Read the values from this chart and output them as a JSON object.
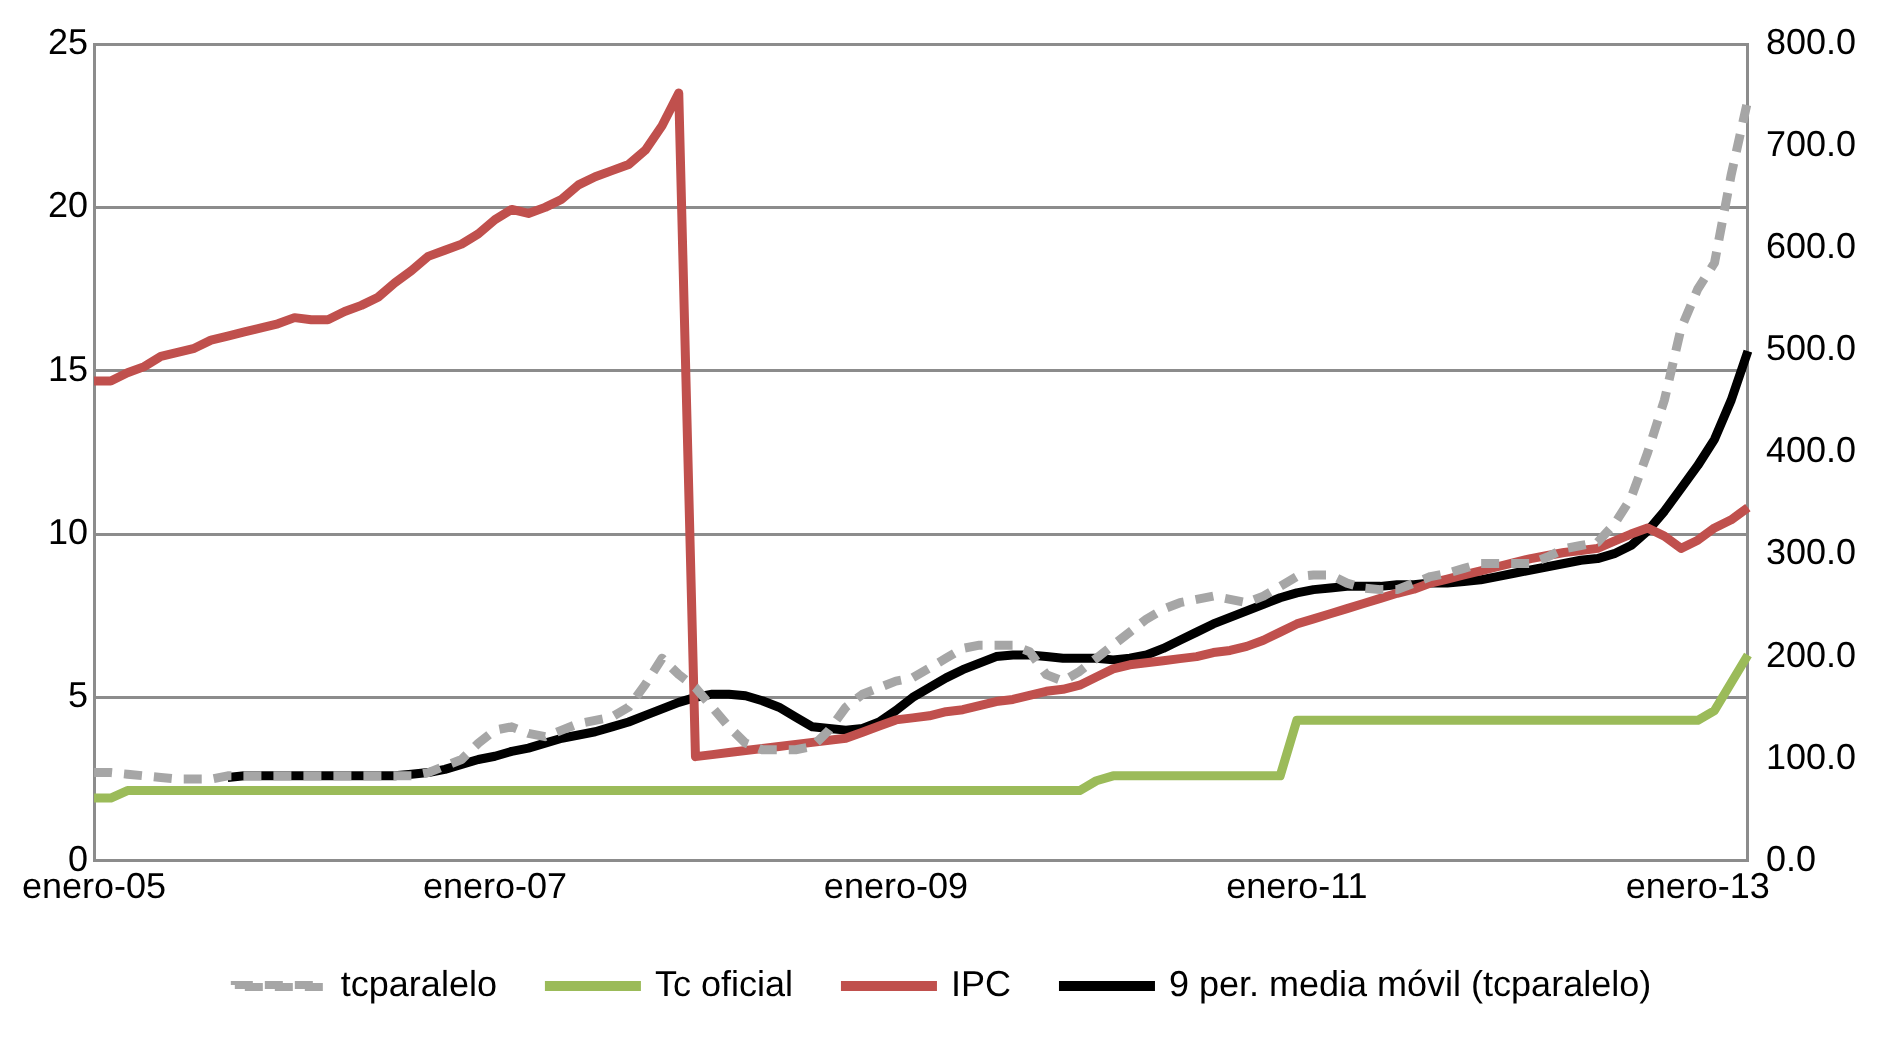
{
  "chart_data": {
    "type": "line",
    "categories": [
      "enero-05",
      null,
      null,
      null,
      null,
      null,
      null,
      null,
      null,
      null,
      null,
      null,
      null,
      null,
      null,
      null,
      null,
      null,
      null,
      null,
      null,
      null,
      null,
      null,
      "enero-07",
      null,
      null,
      null,
      null,
      null,
      null,
      null,
      null,
      null,
      null,
      null,
      null,
      null,
      null,
      null,
      null,
      null,
      null,
      null,
      null,
      null,
      null,
      null,
      "enero-09",
      null,
      null,
      null,
      null,
      null,
      null,
      null,
      null,
      null,
      null,
      null,
      null,
      null,
      null,
      null,
      null,
      null,
      null,
      null,
      null,
      null,
      null,
      null,
      "enero-11",
      null,
      null,
      null,
      null,
      null,
      null,
      null,
      null,
      null,
      null,
      null,
      null,
      null,
      null,
      null,
      null,
      null,
      null,
      null,
      null,
      null,
      null,
      null,
      "enero-13",
      null,
      null,
      null
    ],
    "series": [
      {
        "name": "tcparalelo",
        "color": "#a6a6a6",
        "line_style": "dashed",
        "values": [
          2.7,
          2.7,
          2.65,
          2.6,
          2.55,
          2.5,
          2.5,
          2.5,
          2.6,
          2.6,
          2.6,
          2.6,
          2.6,
          2.6,
          2.6,
          2.6,
          2.6,
          2.6,
          2.6,
          2.6,
          2.7,
          2.9,
          3.1,
          3.6,
          4.0,
          4.1,
          3.9,
          3.8,
          4.0,
          4.2,
          4.3,
          4.4,
          4.7,
          5.4,
          6.2,
          5.7,
          5.3,
          4.7,
          4.1,
          3.6,
          3.4,
          3.4,
          3.4,
          3.5,
          4.0,
          4.7,
          5.1,
          5.3,
          5.5,
          5.6,
          5.9,
          6.2,
          6.5,
          6.6,
          6.6,
          6.6,
          6.4,
          5.7,
          5.5,
          5.8,
          6.2,
          6.6,
          7.0,
          7.4,
          7.7,
          7.9,
          8.0,
          8.1,
          8.0,
          7.9,
          8.1,
          8.4,
          8.7,
          8.75,
          8.75,
          8.5,
          8.35,
          8.3,
          8.3,
          8.5,
          8.7,
          8.8,
          8.95,
          9.1,
          9.1,
          9.1,
          9.1,
          9.3,
          9.55,
          9.65,
          9.75,
          10.3,
          11.1,
          12.5,
          14.1,
          16.3,
          17.5,
          18.3,
          21.0,
          23.3
        ]
      },
      {
        "name": "Tc oficial",
        "color": "#9bbb59",
        "line_style": "solid",
        "values": [
          1.92,
          1.92,
          2.15,
          2.15,
          2.15,
          2.15,
          2.15,
          2.15,
          2.15,
          2.15,
          2.15,
          2.15,
          2.15,
          2.15,
          2.15,
          2.15,
          2.15,
          2.15,
          2.15,
          2.15,
          2.15,
          2.15,
          2.15,
          2.15,
          2.15,
          2.15,
          2.15,
          2.15,
          2.15,
          2.15,
          2.15,
          2.15,
          2.15,
          2.15,
          2.15,
          2.15,
          2.15,
          2.15,
          2.15,
          2.15,
          2.15,
          2.15,
          2.15,
          2.15,
          2.15,
          2.15,
          2.15,
          2.15,
          2.15,
          2.15,
          2.15,
          2.15,
          2.15,
          2.15,
          2.15,
          2.15,
          2.15,
          2.15,
          2.15,
          2.15,
          2.45,
          2.6,
          2.6,
          2.6,
          2.6,
          2.6,
          2.6,
          2.6,
          2.6,
          2.6,
          2.6,
          2.6,
          4.3,
          4.3,
          4.3,
          4.3,
          4.3,
          4.3,
          4.3,
          4.3,
          4.3,
          4.3,
          4.3,
          4.3,
          4.3,
          4.3,
          4.3,
          4.3,
          4.3,
          4.3,
          4.3,
          4.3,
          4.3,
          4.3,
          4.3,
          4.3,
          4.3,
          4.6,
          5.45,
          6.3
        ]
      },
      {
        "name": "IPC",
        "axis": "y2",
        "color": "#c0504d",
        "line_style": "solid",
        "values": [
          470,
          470,
          478,
          484,
          494,
          498,
          502,
          510,
          514,
          518,
          522,
          526,
          532,
          530,
          530,
          538,
          544,
          552,
          566,
          578,
          592,
          598,
          604,
          614,
          628,
          638,
          634,
          640,
          648,
          662,
          670,
          676,
          682,
          696,
          720,
          752,
          102,
          104,
          106,
          108,
          110,
          112,
          114,
          116,
          118,
          120,
          126,
          132,
          138,
          140,
          142,
          146,
          148,
          152,
          156,
          158,
          162,
          166,
          168,
          172,
          180,
          188,
          192,
          194,
          196,
          198,
          200,
          204,
          206,
          210,
          216,
          224,
          232,
          237,
          242,
          247,
          252,
          257,
          262,
          266,
          272,
          276,
          280,
          284,
          288,
          292,
          296,
          299,
          302,
          304,
          306,
          313,
          320,
          326,
          318,
          306,
          314,
          326,
          334,
          346
        ]
      },
      {
        "name": "9 per. media móvil (tcparalelo)",
        "color": "#000000",
        "line_style": "solid",
        "values": [
          null,
          null,
          null,
          null,
          null,
          null,
          null,
          null,
          2.55,
          2.6,
          2.6,
          2.6,
          2.6,
          2.6,
          2.6,
          2.6,
          2.6,
          2.6,
          2.6,
          2.65,
          2.7,
          2.8,
          2.95,
          3.1,
          3.2,
          3.35,
          3.45,
          3.6,
          3.75,
          3.85,
          3.95,
          4.1,
          4.25,
          4.45,
          4.65,
          4.85,
          5.0,
          5.1,
          5.1,
          5.05,
          4.9,
          4.7,
          4.4,
          4.1,
          4.05,
          4.0,
          4.05,
          4.25,
          4.6,
          5.0,
          5.3,
          5.6,
          5.85,
          6.05,
          6.25,
          6.3,
          6.3,
          6.25,
          6.2,
          6.2,
          6.2,
          6.15,
          6.2,
          6.3,
          6.5,
          6.75,
          7.0,
          7.25,
          7.45,
          7.65,
          7.85,
          8.05,
          8.2,
          8.3,
          8.35,
          8.4,
          8.4,
          8.4,
          8.45,
          8.45,
          8.5,
          8.5,
          8.55,
          8.6,
          8.7,
          8.8,
          8.9,
          9.0,
          9.1,
          9.2,
          9.25,
          9.4,
          9.65,
          10.1,
          10.7,
          11.4,
          12.1,
          12.9,
          14.1,
          15.6
        ]
      }
    ],
    "ylim": [
      0,
      25
    ],
    "yticks": [
      0,
      5,
      10,
      15,
      20,
      25
    ],
    "y2lim": [
      0,
      800
    ],
    "y2ticks": [
      {
        "value": 0,
        "label": "0.0"
      },
      {
        "value": 100,
        "label": "100.0"
      },
      {
        "value": 200,
        "label": "200.0"
      },
      {
        "value": 300,
        "label": "300.0"
      },
      {
        "value": 400,
        "label": "400.0"
      },
      {
        "value": 500,
        "label": "500.0"
      },
      {
        "value": 600,
        "label": "600.0"
      },
      {
        "value": 700,
        "label": "700.0"
      },
      {
        "value": 800,
        "label": "800.0"
      }
    ],
    "grid": "y",
    "legend": "bottom"
  }
}
